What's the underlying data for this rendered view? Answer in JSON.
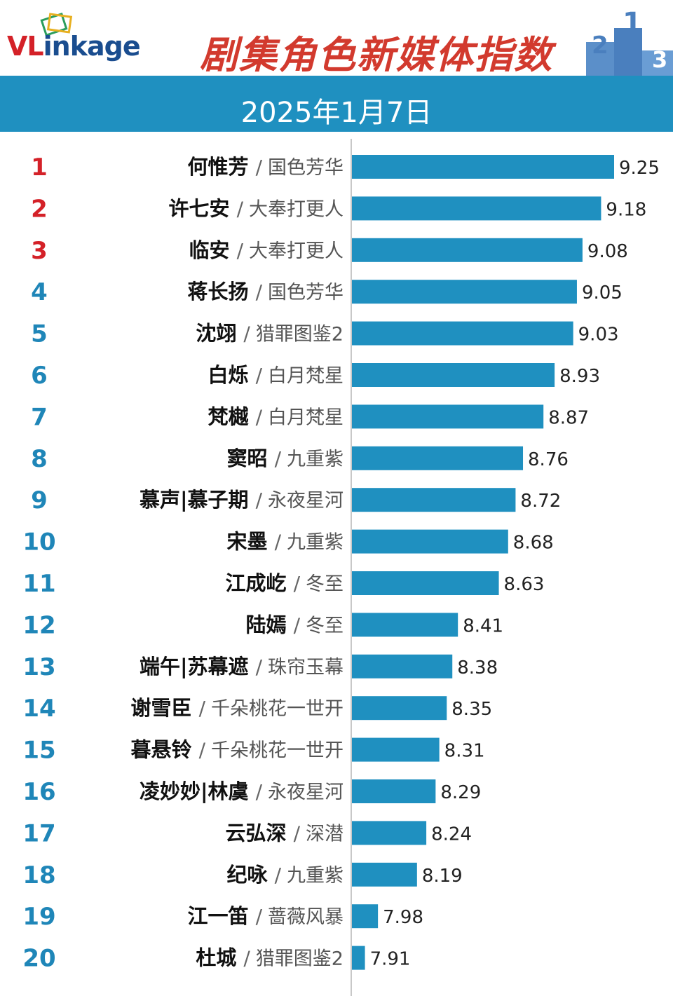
{
  "header": {
    "logo_text": "VLinkage",
    "title": "剧集角色新媒体指数",
    "podium_labels": [
      "2",
      "1",
      "3"
    ]
  },
  "date": "2025年1月7日",
  "colors": {
    "bar": "#1f90c0",
    "banner": "#1f90c0",
    "title": "#d23a2e",
    "rank_top3": "#d42128",
    "rank_rest": "#1f86b8"
  },
  "chart_data": {
    "type": "bar",
    "orientation": "horizontal",
    "categories": [
      {
        "rank": "1",
        "name": "何惟芳",
        "show": "国色芳华"
      },
      {
        "rank": "2",
        "name": "许七安",
        "show": "大奉打更人"
      },
      {
        "rank": "3",
        "name": "临安",
        "show": "大奉打更人"
      },
      {
        "rank": "4",
        "name": "蒋长扬",
        "show": "国色芳华"
      },
      {
        "rank": "5",
        "name": "沈翊",
        "show": "猎罪图鉴2"
      },
      {
        "rank": "6",
        "name": "白烁",
        "show": "白月梵星"
      },
      {
        "rank": "7",
        "name": "梵樾",
        "show": "白月梵星"
      },
      {
        "rank": "8",
        "name": "窦昭",
        "show": "九重紫"
      },
      {
        "rank": "9",
        "name": "慕声|慕子期",
        "show": "永夜星河"
      },
      {
        "rank": "10",
        "name": "宋墨",
        "show": "九重紫"
      },
      {
        "rank": "11",
        "name": "江成屹",
        "show": "冬至"
      },
      {
        "rank": "12",
        "name": "陆嫣",
        "show": "冬至"
      },
      {
        "rank": "13",
        "name": "端午|苏幕遮",
        "show": "珠帘玉幕"
      },
      {
        "rank": "14",
        "name": "谢雪臣",
        "show": "千朵桃花一世开"
      },
      {
        "rank": "15",
        "name": "暮悬铃",
        "show": "千朵桃花一世开"
      },
      {
        "rank": "16",
        "name": "凌妙妙|林虞",
        "show": "永夜星河"
      },
      {
        "rank": "17",
        "name": "云弘深",
        "show": "深潜"
      },
      {
        "rank": "18",
        "name": "纪咏",
        "show": "九重紫"
      },
      {
        "rank": "19",
        "name": "江一笛",
        "show": "蔷薇风暴"
      },
      {
        "rank": "20",
        "name": "杜城",
        "show": "猎罪图鉴2"
      }
    ],
    "values": [
      9.25,
      9.18,
      9.08,
      9.05,
      9.03,
      8.93,
      8.87,
      8.76,
      8.72,
      8.68,
      8.63,
      8.41,
      8.38,
      8.35,
      8.31,
      8.29,
      8.24,
      8.19,
      7.98,
      7.91
    ],
    "value_labels": [
      "9.25",
      "9.18",
      "9.08",
      "9.05",
      "9.03",
      "8.93",
      "8.87",
      "8.76",
      "8.72",
      "8.68",
      "8.63",
      "8.41",
      "8.38",
      "8.35",
      "8.31",
      "8.29",
      "8.24",
      "8.19",
      "7.98",
      "7.91"
    ],
    "separator": "/",
    "xlim": [
      7.84,
      9.25
    ],
    "grid": false,
    "legend": "none"
  }
}
